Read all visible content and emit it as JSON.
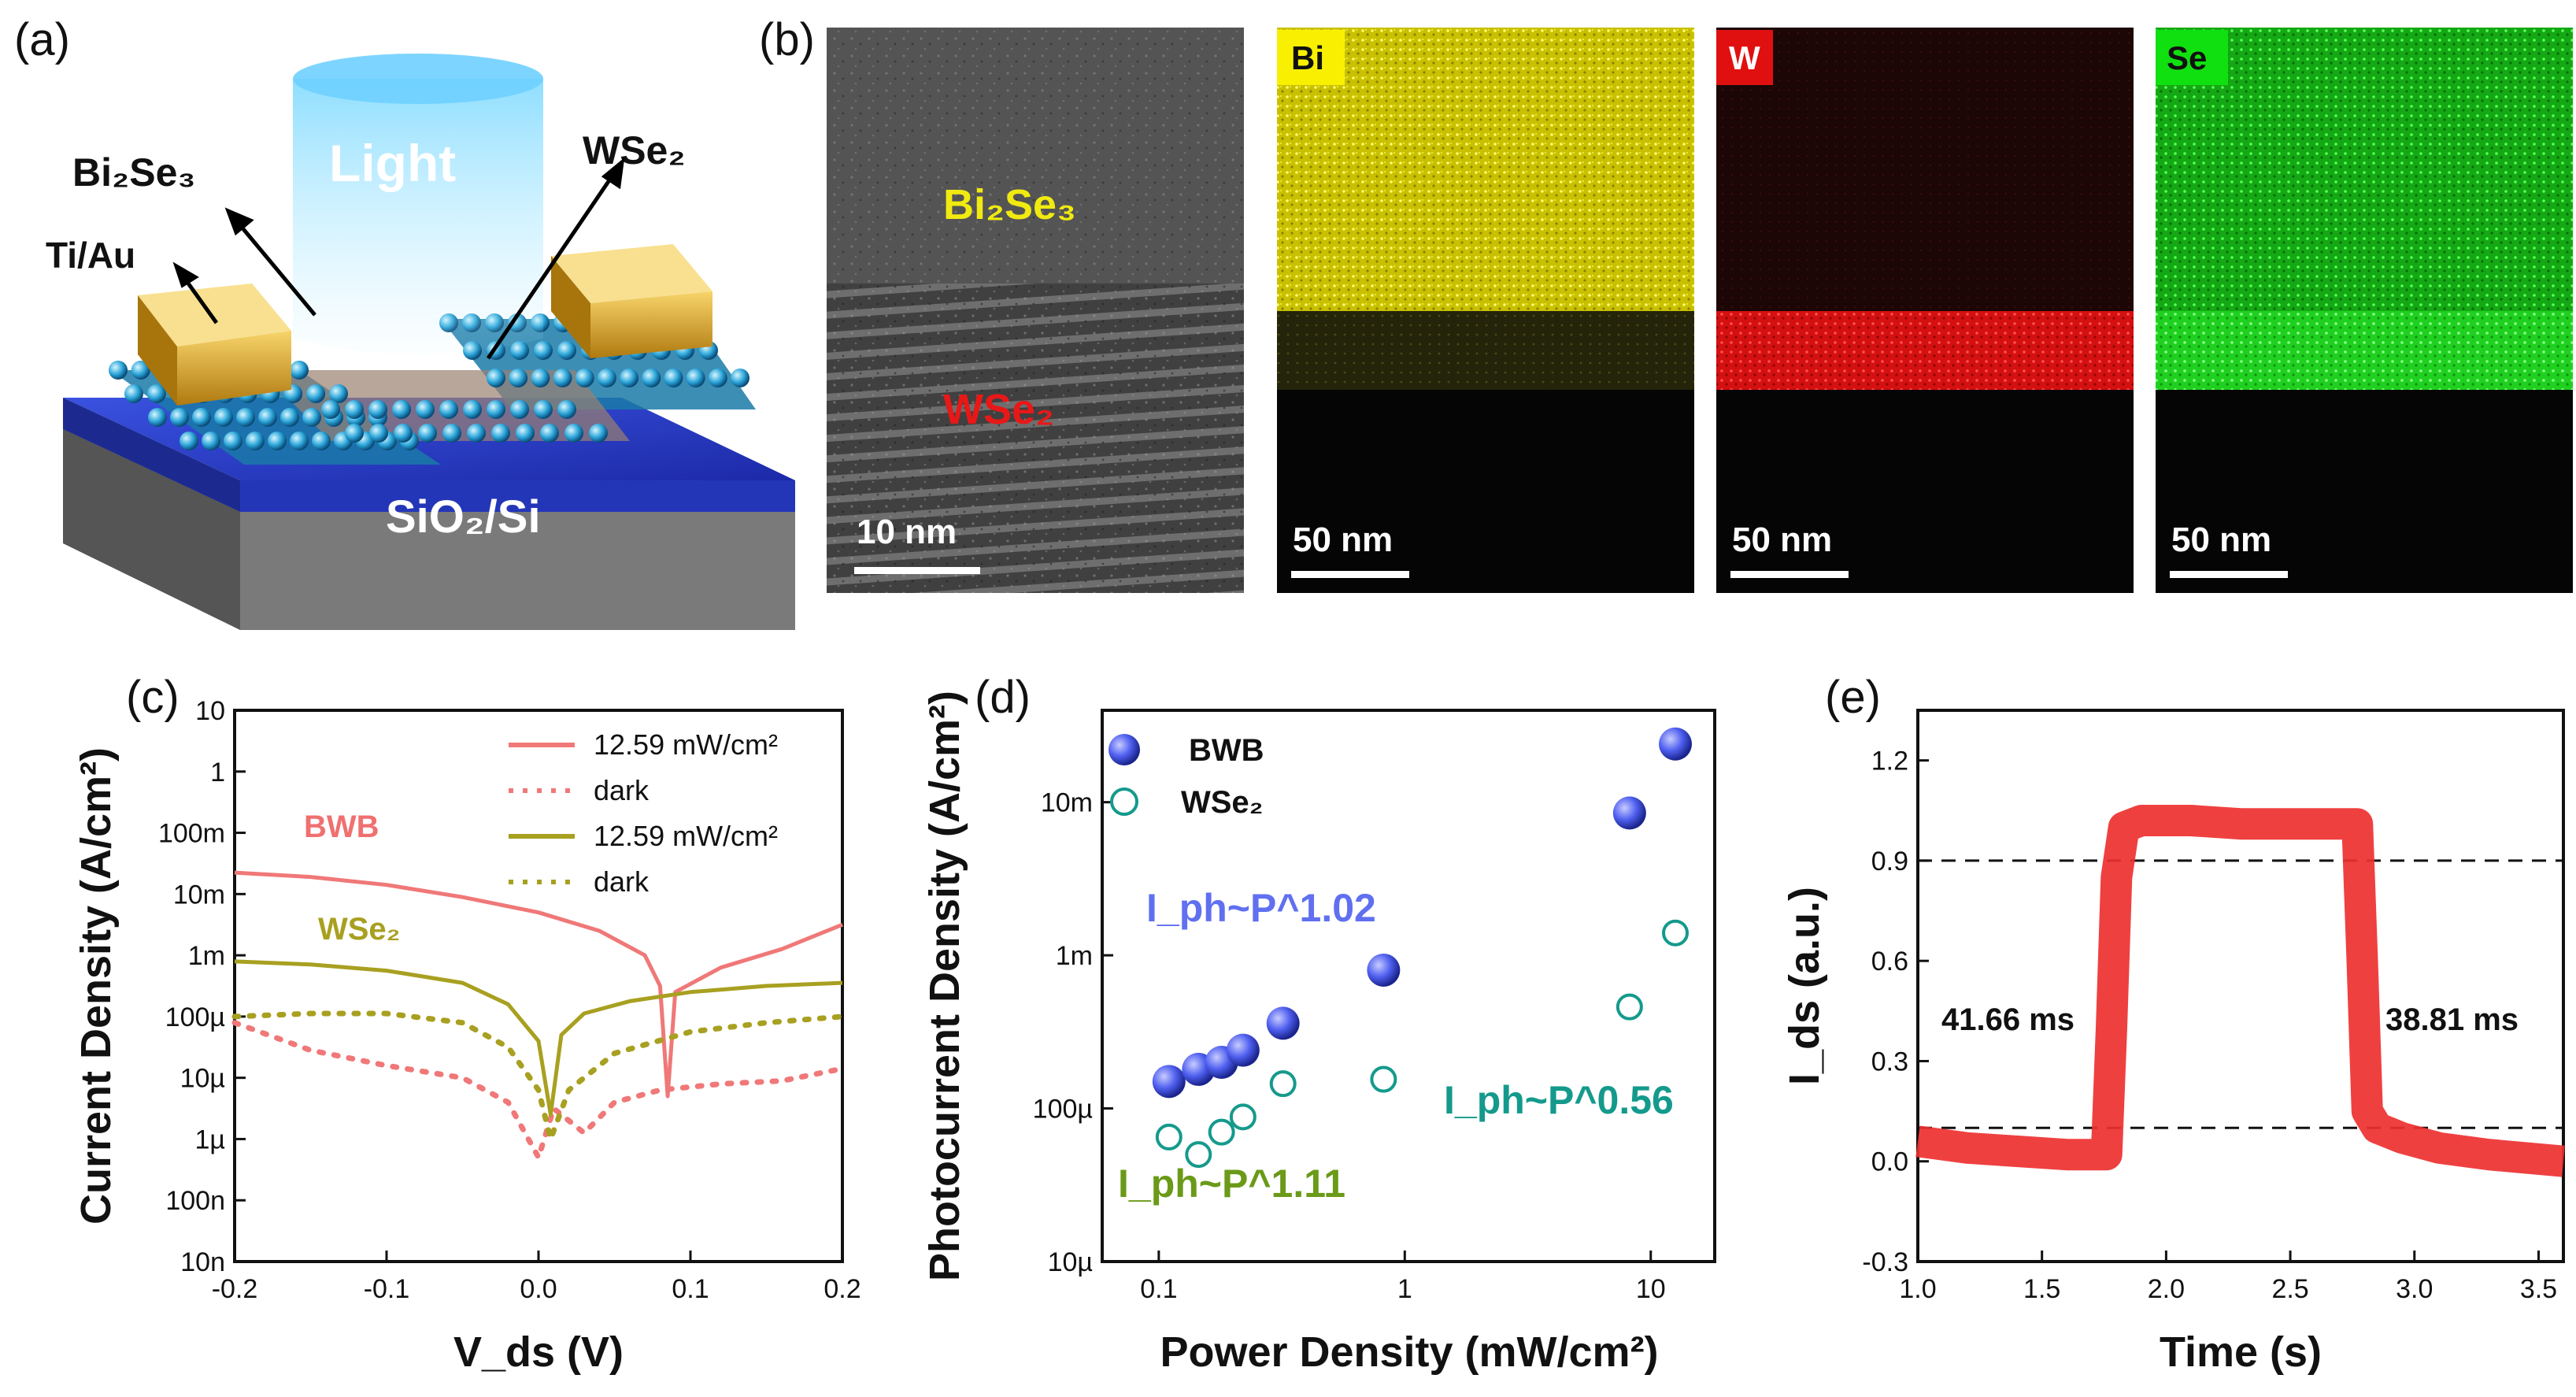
{
  "panels": {
    "a": {
      "label": "(a)",
      "labels": {
        "light": "Light",
        "bi2se3": "Bi₂Se₃",
        "wse2": "WSe₂",
        "tiau": "Ti/Au",
        "substrate": "SiO₂/Si"
      }
    },
    "b": {
      "label": "(b)",
      "tem": {
        "layer_top": "Bi₂Se₃",
        "layer_bottom": "WSe₂",
        "scale": "10 nm"
      },
      "maps": [
        {
          "element": "Bi",
          "scale": "50 nm",
          "color": "#e8e000"
        },
        {
          "element": "W",
          "scale": "50 nm",
          "color": "#e01010"
        },
        {
          "element": "Se",
          "scale": "50 nm",
          "color": "#10d010"
        }
      ]
    },
    "c": {
      "label": "(c)"
    },
    "d": {
      "label": "(d)"
    },
    "e": {
      "label": "(e)"
    }
  },
  "chart_data": [
    {
      "id": "c",
      "type": "line",
      "xlabel": "V_ds (V)",
      "ylabel": "Current Density (A/cm²)",
      "xlim": [
        -0.2,
        0.2
      ],
      "xticks": [
        "-0.2",
        "-0.1",
        "0.0",
        "0.1",
        "0.2"
      ],
      "yticks": [
        "10n",
        "100n",
        "1µ",
        "10µ",
        "100µ",
        "1m",
        "10m",
        "100m",
        "1",
        "10"
      ],
      "ylog_range": [
        -8,
        1
      ],
      "legend": [
        "12.59 mW/cm²",
        "dark",
        "12.59 mW/cm²",
        "dark"
      ],
      "annotations": [
        "BWB",
        "WSe₂"
      ],
      "series": [
        {
          "name": "BWB 12.59 mW/cm²",
          "color": "#f07878",
          "style": "solid",
          "x": [
            -0.2,
            -0.15,
            -0.1,
            -0.05,
            0.0,
            0.04,
            0.07,
            0.08,
            0.085,
            0.09,
            0.12,
            0.16,
            0.2
          ],
          "log_y": [
            -1.65,
            -1.72,
            -1.85,
            -2.05,
            -2.3,
            -2.6,
            -3.0,
            -3.5,
            -5.3,
            -3.6,
            -3.2,
            -2.9,
            -2.5
          ]
        },
        {
          "name": "BWB dark",
          "color": "#f07878",
          "style": "dotted",
          "x": [
            -0.2,
            -0.15,
            -0.1,
            -0.05,
            -0.02,
            0.0,
            0.01,
            0.03,
            0.05,
            0.08,
            0.12,
            0.16,
            0.2
          ],
          "log_y": [
            -4.1,
            -4.55,
            -4.8,
            -5.0,
            -5.4,
            -6.3,
            -5.5,
            -5.9,
            -5.4,
            -5.2,
            -5.1,
            -5.05,
            -4.85
          ]
        },
        {
          "name": "WSe2 12.59 mW/cm²",
          "color": "#a8a020",
          "style": "solid",
          "x": [
            -0.2,
            -0.15,
            -0.1,
            -0.05,
            -0.02,
            0.0,
            0.008,
            0.015,
            0.03,
            0.06,
            0.1,
            0.15,
            0.2
          ],
          "log_y": [
            -3.1,
            -3.15,
            -3.25,
            -3.45,
            -3.8,
            -4.4,
            -5.6,
            -4.3,
            -3.95,
            -3.75,
            -3.6,
            -3.5,
            -3.45
          ]
        },
        {
          "name": "WSe2 dark",
          "color": "#a8a020",
          "style": "dotted",
          "x": [
            -0.2,
            -0.15,
            -0.1,
            -0.05,
            -0.02,
            0.0,
            0.008,
            0.02,
            0.05,
            0.1,
            0.15,
            0.2
          ],
          "log_y": [
            -4.0,
            -3.95,
            -3.95,
            -4.1,
            -4.5,
            -5.2,
            -6.0,
            -5.2,
            -4.6,
            -4.25,
            -4.1,
            -4.0
          ]
        }
      ]
    },
    {
      "id": "d",
      "type": "scatter",
      "xlabel": "Power Density (mW/cm²)",
      "ylabel": "Photocurrent Density (A/cm²)",
      "xticks": [
        "0.1",
        "1",
        "10"
      ],
      "yticks": [
        "10µ",
        "100µ",
        "1m",
        "10m"
      ],
      "xlog_range": [
        -1.23,
        1.26
      ],
      "ylog_range": [
        -5,
        -1.4
      ],
      "legend": [
        "BWB",
        "WSe₂"
      ],
      "annotations": {
        "bwb_fit": "I_ph~P^1.02",
        "wse2_fit_low": "I_ph~P^1.11",
        "wse2_fit_high": "I_ph~P^0.56"
      },
      "series": [
        {
          "name": "BWB",
          "color": "#4a5ae8",
          "x": [
            0.11,
            0.145,
            0.18,
            0.22,
            0.32,
            0.82,
            8.2,
            12.59
          ],
          "y": [
            0.00015,
            0.00018,
            0.0002,
            0.00024,
            0.00036,
            0.0008,
            0.0085,
            0.024
          ]
        },
        {
          "name": "WSe₂",
          "color": "#149a8c",
          "x": [
            0.11,
            0.145,
            0.18,
            0.22,
            0.32,
            0.82,
            8.2,
            12.59
          ],
          "y": [
            6.5e-05,
            5e-05,
            7e-05,
            8.8e-05,
            0.000145,
            0.000155,
            0.00046,
            0.0014
          ]
        }
      ]
    },
    {
      "id": "e",
      "type": "line",
      "xlabel": "Time (s)",
      "ylabel": "I_ds (a.u.)",
      "xlim": [
        1.0,
        3.6
      ],
      "ylim": [
        -0.3,
        1.35
      ],
      "xticks": [
        "1.0",
        "1.5",
        "2.0",
        "2.5",
        "3.0",
        "3.5"
      ],
      "yticks": [
        "-0.3",
        "0.0",
        "0.3",
        "0.6",
        "0.9",
        "1.2"
      ],
      "thresholds": [
        0.9,
        0.1
      ],
      "annotations": [
        "41.66 ms",
        "38.81 ms"
      ],
      "series": [
        {
          "name": "I_ds",
          "color": "#ee3030",
          "x": [
            1.0,
            1.2,
            1.4,
            1.6,
            1.76,
            1.78,
            1.8,
            1.83,
            1.9,
            2.1,
            2.3,
            2.5,
            2.7,
            2.77,
            2.79,
            2.81,
            2.85,
            2.95,
            3.1,
            3.3,
            3.6
          ],
          "y": [
            0.06,
            0.04,
            0.03,
            0.02,
            0.02,
            0.4,
            0.85,
            1.0,
            1.02,
            1.02,
            1.01,
            1.01,
            1.01,
            1.01,
            0.6,
            0.15,
            0.1,
            0.07,
            0.04,
            0.02,
            0.0
          ]
        }
      ]
    }
  ]
}
